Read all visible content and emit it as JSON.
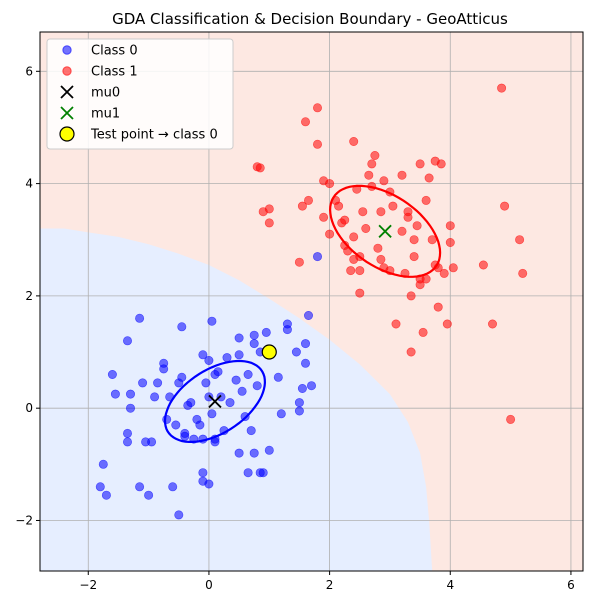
{
  "chart_data": {
    "type": "scatter",
    "title": "GDA Classification & Decision Boundary - GeoAtticus",
    "xlabel": "",
    "ylabel": "",
    "xlim": [
      -2.8,
      6.2
    ],
    "ylim": [
      -2.9,
      6.7
    ],
    "xticks": [
      -2,
      0,
      2,
      4,
      6
    ],
    "yticks": [
      -2,
      0,
      2,
      4,
      6
    ],
    "grid": true,
    "legend_position": "top-left",
    "colors": {
      "class0": "#0000ff",
      "class1": "#ff0000",
      "mu0": "#000000",
      "mu1": "#008000",
      "test_point": "#ffff00",
      "region0": "#e6eeff",
      "region1": "#fde8e2"
    },
    "legend": [
      {
        "label": "Class 0",
        "marker": "circle",
        "color": "#0000ff"
      },
      {
        "label": "Class 1",
        "marker": "circle",
        "color": "#ff0000"
      },
      {
        "label": "mu0",
        "marker": "x",
        "color": "#000000"
      },
      {
        "label": "mu1",
        "marker": "x",
        "color": "#008000"
      },
      {
        "label": "Test point → class 0",
        "marker": "big-circle",
        "color": "#ffff00"
      }
    ],
    "series": [
      {
        "name": "Class 0",
        "points": [
          [
            -1.8,
            -1.4
          ],
          [
            -1.75,
            -1.0
          ],
          [
            -1.7,
            -1.55
          ],
          [
            -1.6,
            0.6
          ],
          [
            -1.55,
            0.25
          ],
          [
            -1.35,
            1.2
          ],
          [
            -1.35,
            -0.45
          ],
          [
            -1.35,
            -0.6
          ],
          [
            -1.3,
            0.25
          ],
          [
            -1.3,
            0.0
          ],
          [
            -1.15,
            1.6
          ],
          [
            -1.15,
            -1.4
          ],
          [
            -1.1,
            0.45
          ],
          [
            -1.05,
            -0.6
          ],
          [
            -1.0,
            -1.55
          ],
          [
            -0.95,
            -0.6
          ],
          [
            -0.9,
            0.2
          ],
          [
            -0.85,
            0.45
          ],
          [
            -0.75,
            0.8
          ],
          [
            -0.75,
            0.7
          ],
          [
            -0.7,
            -0.2
          ],
          [
            -0.65,
            0.2
          ],
          [
            -0.6,
            -1.4
          ],
          [
            -0.55,
            -0.3
          ],
          [
            -0.5,
            0.45
          ],
          [
            -0.5,
            -1.9
          ],
          [
            -0.45,
            0.55
          ],
          [
            -0.45,
            1.45
          ],
          [
            -0.4,
            -0.5
          ],
          [
            -0.4,
            -0.45
          ],
          [
            -0.35,
            0.05
          ],
          [
            -0.3,
            0.1
          ],
          [
            -0.25,
            -0.55
          ],
          [
            -0.2,
            -0.2
          ],
          [
            -0.15,
            -0.3
          ],
          [
            -0.1,
            0.95
          ],
          [
            -0.1,
            -0.55
          ],
          [
            -0.1,
            -1.15
          ],
          [
            -0.1,
            -1.3
          ],
          [
            -0.05,
            0.45
          ],
          [
            0.0,
            0.2
          ],
          [
            0.0,
            -1.35
          ],
          [
            0.0,
            0.85
          ],
          [
            0.05,
            -0.1
          ],
          [
            0.05,
            1.55
          ],
          [
            0.1,
            -0.55
          ],
          [
            0.1,
            -0.6
          ],
          [
            0.1,
            0.6
          ],
          [
            0.15,
            0.65
          ],
          [
            0.2,
            0.2
          ],
          [
            0.25,
            -0.4
          ],
          [
            0.3,
            0.9
          ],
          [
            0.35,
            0.1
          ],
          [
            0.45,
            0.5
          ],
          [
            0.5,
            -0.8
          ],
          [
            0.5,
            0.95
          ],
          [
            0.5,
            1.25
          ],
          [
            0.55,
            0.3
          ],
          [
            0.6,
            -0.15
          ],
          [
            0.65,
            -1.15
          ],
          [
            0.65,
            0.6
          ],
          [
            0.7,
            -0.4
          ],
          [
            0.75,
            1.15
          ],
          [
            0.75,
            1.3
          ],
          [
            0.75,
            -0.8
          ],
          [
            0.8,
            0.4
          ],
          [
            0.85,
            -1.15
          ],
          [
            0.85,
            1.0
          ],
          [
            0.9,
            -1.15
          ],
          [
            0.95,
            1.35
          ],
          [
            1.0,
            -0.75
          ],
          [
            1.15,
            0.55
          ],
          [
            1.2,
            -0.1
          ],
          [
            1.3,
            1.4
          ],
          [
            1.3,
            1.5
          ],
          [
            1.45,
            1.0
          ],
          [
            1.5,
            0.1
          ],
          [
            1.5,
            -0.05
          ],
          [
            1.55,
            0.35
          ],
          [
            1.6,
            0.8
          ],
          [
            1.6,
            1.15
          ],
          [
            1.65,
            1.65
          ],
          [
            1.7,
            0.4
          ],
          [
            1.8,
            2.7
          ]
        ]
      },
      {
        "name": "Class 1",
        "points": [
          [
            0.8,
            4.3
          ],
          [
            0.85,
            4.28
          ],
          [
            0.9,
            3.5
          ],
          [
            1.0,
            3.3
          ],
          [
            1.0,
            3.55
          ],
          [
            1.5,
            2.6
          ],
          [
            1.55,
            3.6
          ],
          [
            1.6,
            5.1
          ],
          [
            1.65,
            3.7
          ],
          [
            1.8,
            4.7
          ],
          [
            1.8,
            5.35
          ],
          [
            1.9,
            4.05
          ],
          [
            1.9,
            3.4
          ],
          [
            2.0,
            3.1
          ],
          [
            2.0,
            4.0
          ],
          [
            2.1,
            3.7
          ],
          [
            2.15,
            3.6
          ],
          [
            2.2,
            3.3
          ],
          [
            2.25,
            3.35
          ],
          [
            2.25,
            2.9
          ],
          [
            2.3,
            2.8
          ],
          [
            2.35,
            2.45
          ],
          [
            2.4,
            2.65
          ],
          [
            2.4,
            4.75
          ],
          [
            2.4,
            3.05
          ],
          [
            2.45,
            3.9
          ],
          [
            2.5,
            2.05
          ],
          [
            2.5,
            2.7
          ],
          [
            2.5,
            2.45
          ],
          [
            2.55,
            3.5
          ],
          [
            2.6,
            3.2
          ],
          [
            2.65,
            4.15
          ],
          [
            2.7,
            3.95
          ],
          [
            2.7,
            4.35
          ],
          [
            2.75,
            4.5
          ],
          [
            2.8,
            2.85
          ],
          [
            2.85,
            3.5
          ],
          [
            2.85,
            2.65
          ],
          [
            2.9,
            4.05
          ],
          [
            2.9,
            2.5
          ],
          [
            3.0,
            3.85
          ],
          [
            3.0,
            2.45
          ],
          [
            3.05,
            3.6
          ],
          [
            3.1,
            1.5
          ],
          [
            3.2,
            3.15
          ],
          [
            3.2,
            4.15
          ],
          [
            3.25,
            2.4
          ],
          [
            3.3,
            3.4
          ],
          [
            3.3,
            3.5
          ],
          [
            3.35,
            2.0
          ],
          [
            3.35,
            1.0
          ],
          [
            3.4,
            2.7
          ],
          [
            3.4,
            3.0
          ],
          [
            3.45,
            3.25
          ],
          [
            3.5,
            2.3
          ],
          [
            3.5,
            2.2
          ],
          [
            3.5,
            4.35
          ],
          [
            3.55,
            1.35
          ],
          [
            3.6,
            2.3
          ],
          [
            3.6,
            3.7
          ],
          [
            3.65,
            4.1
          ],
          [
            3.7,
            3.0
          ],
          [
            3.75,
            2.55
          ],
          [
            3.75,
            4.4
          ],
          [
            3.8,
            1.8
          ],
          [
            3.8,
            2.5
          ],
          [
            3.85,
            4.35
          ],
          [
            3.9,
            2.4
          ],
          [
            3.95,
            1.5
          ],
          [
            4.0,
            3.25
          ],
          [
            4.0,
            2.95
          ],
          [
            4.05,
            2.5
          ],
          [
            4.55,
            2.55
          ],
          [
            4.7,
            1.5
          ],
          [
            4.85,
            5.7
          ],
          [
            4.9,
            3.6
          ],
          [
            5.0,
            -0.2
          ],
          [
            5.15,
            3.0
          ],
          [
            5.2,
            2.4
          ]
        ]
      }
    ],
    "means": {
      "mu0": [
        0.1,
        0.12
      ],
      "mu1": [
        2.92,
        3.15
      ]
    },
    "test_point": [
      1.0,
      1.0
    ],
    "ellipses": [
      {
        "class": "Class 0",
        "center": [
          0.1,
          0.12
        ],
        "rx": 0.95,
        "ry": 0.55,
        "angle_deg": 37
      },
      {
        "class": "Class 1",
        "center": [
          2.92,
          3.15
        ],
        "rx": 1.05,
        "ry": 0.62,
        "angle_deg": -38
      }
    ],
    "decision_boundary": [
      [
        -2.8,
        3.2
      ],
      [
        -2.4,
        3.2
      ],
      [
        -2.0,
        3.13
      ],
      [
        -1.5,
        3.05
      ],
      [
        -1.0,
        2.92
      ],
      [
        -0.5,
        2.75
      ],
      [
        0.0,
        2.55
      ],
      [
        0.5,
        2.28
      ],
      [
        1.0,
        1.95
      ],
      [
        1.5,
        1.6
      ],
      [
        2.0,
        1.22
      ],
      [
        2.5,
        0.78
      ],
      [
        3.0,
        0.25
      ],
      [
        3.3,
        -0.25
      ],
      [
        3.5,
        -0.8
      ],
      [
        3.6,
        -1.4
      ],
      [
        3.65,
        -2.0
      ],
      [
        3.7,
        -2.9
      ]
    ]
  }
}
